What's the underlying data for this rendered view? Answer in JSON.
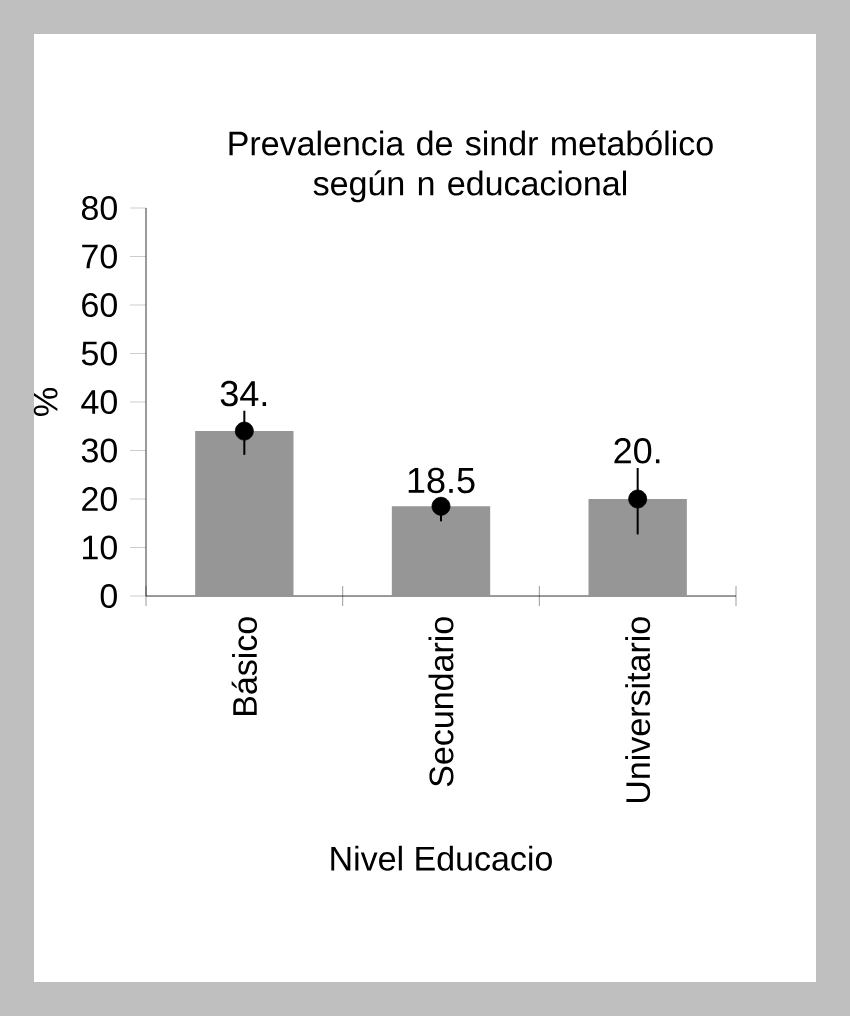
{
  "chart_data": {
    "type": "bar",
    "title": "Prevalencia de sindr metabólico según n educacional",
    "categories": [
      "Básico",
      "Secundario",
      "Universitario"
    ],
    "series": [
      {
        "color": "#969696",
        "values": [
          34,
          18.5,
          20
        ],
        "value_labels": [
          "34.",
          "18.5",
          "20."
        ]
      },
      {
        "type": "scatter",
        "x": [
          "Básico",
          "Secundario",
          "Universitario"
        ],
        "values": [
          34,
          18.5,
          20
        ],
        "errors": [
          [
            29.1,
            38.2
          ],
          [
            15.4,
            20.3
          ],
          [
            12.7,
            26.4
          ]
        ],
        "color": "#000000",
        "marker": "circle"
      }
    ],
    "xlabel": "Nivel Educacio",
    "ylabel": "%",
    "ylim": [
      0,
      80
    ],
    "yticks": [
      0,
      10,
      20,
      30,
      40,
      50,
      60,
      70,
      80
    ]
  }
}
